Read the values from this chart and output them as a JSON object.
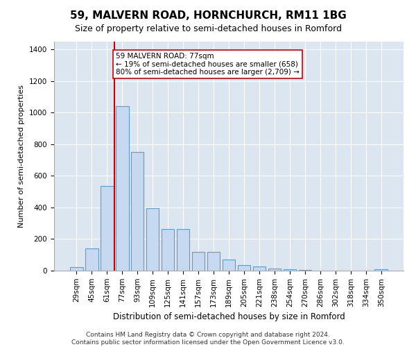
{
  "title": "59, MALVERN ROAD, HORNCHURCH, RM11 1BG",
  "subtitle": "Size of property relative to semi-detached houses in Romford",
  "xlabel": "Distribution of semi-detached houses by size in Romford",
  "ylabel": "Number of semi-detached properties",
  "footer_line1": "Contains HM Land Registry data © Crown copyright and database right 2024.",
  "footer_line2": "Contains public sector information licensed under the Open Government Licence v3.0.",
  "annotation_line1": "59 MALVERN ROAD: 77sqm",
  "annotation_line2": "← 19% of semi-detached houses are smaller (658)",
  "annotation_line3": "80% of semi-detached houses are larger (2,709) →",
  "property_bin_index": 3,
  "categories": [
    "29sqm",
    "45sqm",
    "61sqm",
    "77sqm",
    "93sqm",
    "109sqm",
    "125sqm",
    "141sqm",
    "157sqm",
    "173sqm",
    "189sqm",
    "205sqm",
    "221sqm",
    "238sqm",
    "254sqm",
    "270sqm",
    "286sqm",
    "302sqm",
    "318sqm",
    "334sqm",
    "350sqm"
  ],
  "values": [
    22,
    140,
    535,
    1040,
    750,
    395,
    265,
    265,
    120,
    120,
    70,
    35,
    25,
    12,
    8,
    3,
    0,
    0,
    0,
    0,
    8
  ],
  "bar_color": "#c6d9f0",
  "bar_edge_color": "#5b9bd5",
  "highlight_line_color": "#cc0000",
  "annotation_box_edge_color": "#cc0000",
  "plot_bg_color": "#dce6f1",
  "background_color": "#ffffff",
  "grid_color": "#ffffff",
  "ylim": [
    0,
    1450
  ],
  "yticks": [
    0,
    200,
    400,
    600,
    800,
    1000,
    1200,
    1400
  ],
  "title_fontsize": 11,
  "subtitle_fontsize": 9,
  "ylabel_fontsize": 8,
  "xlabel_fontsize": 8.5,
  "tick_fontsize": 7.5,
  "footer_fontsize": 6.5
}
